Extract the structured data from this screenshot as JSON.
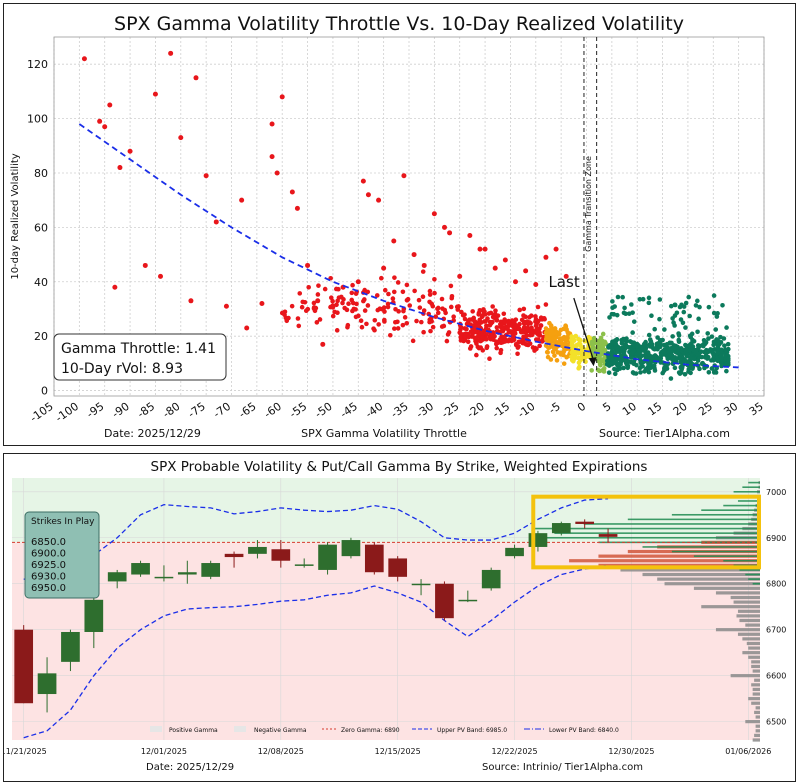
{
  "colors": {
    "accent_blue": "#1a2ee8",
    "scatter_red": "#e8161b",
    "scatter_orange": "#f5a00f",
    "scatter_yellow": "#f3e12a",
    "scatter_lightgreen": "#8cc04a",
    "scatter_teal": "#0c7a5c",
    "candle_up": "#2e6e2e",
    "candle_down": "#8b1a1a",
    "pos_gamma_bg": "#e6f5e6",
    "neg_gamma_bg": "#fde3e3",
    "highlight_box": "#f4c20d",
    "zero_gamma_line": "#d63b2f",
    "legend_panel": "#8fbfb3"
  },
  "chart_data": [
    {
      "type": "scatter",
      "title": "SPX Gamma Volatility Throttle Vs. 10-Day Realized Volatility",
      "xlabel": "SPX Gamma Volatility Throttle",
      "ylabel": "10-day Realized Volatility",
      "xlim": [
        -105,
        35
      ],
      "ylim": [
        -2,
        130
      ],
      "x_ticks": [
        -105,
        -100,
        -95,
        -90,
        -85,
        -80,
        -75,
        -70,
        -65,
        -60,
        -55,
        -50,
        -45,
        -40,
        -35,
        -30,
        -25,
        -20,
        -15,
        -10,
        -5,
        0,
        5,
        10,
        15,
        20,
        25,
        30,
        35
      ],
      "y_ticks": [
        0,
        20,
        40,
        60,
        80,
        100,
        120
      ],
      "grid": true,
      "transition_zone": {
        "label": "Gamma Transition Zone",
        "x_start": -0.5,
        "x_end": 2
      },
      "fit_curve": {
        "name": "Fit",
        "x": [
          -100,
          -90,
          -80,
          -70,
          -60,
          -50,
          -40,
          -30,
          -20,
          -10,
          0,
          10,
          20,
          30
        ],
        "y": [
          98,
          85,
          72,
          60,
          49,
          40,
          33,
          27,
          22,
          18,
          14.5,
          11.5,
          9.5,
          8.5
        ]
      },
      "outlier_points": {
        "x": [
          -99,
          -96,
          -95,
          -94,
          -93,
          -92,
          -90,
          -87,
          -85,
          -84,
          -82,
          -80,
          -78,
          -77,
          -75,
          -73,
          -71,
          -68,
          -67,
          -64,
          -62,
          -62,
          -61,
          -60,
          -58,
          -57,
          -55,
          -53,
          -52,
          -50,
          -48,
          -45,
          -44,
          -43,
          -41,
          -40,
          -38,
          -36,
          -34,
          -32,
          -30,
          -28,
          -27,
          -25,
          -23,
          -21,
          -20,
          -18,
          -16,
          -14,
          -12,
          -10,
          -8,
          -6,
          -4
        ],
        "y": [
          122,
          99,
          97,
          105,
          38,
          82,
          88,
          46,
          109,
          42,
          124,
          93,
          33,
          115,
          79,
          62,
          31,
          70,
          23,
          32,
          98,
          86,
          80,
          108,
          73,
          67,
          46,
          33,
          17,
          31,
          38,
          40,
          77,
          72,
          70,
          45,
          55,
          79,
          50,
          46,
          65,
          60,
          58,
          42,
          57,
          52,
          52,
          45,
          48,
          40,
          44,
          39,
          49,
          52,
          42
        ],
        "series_group": "red"
      },
      "dense_cloud": {
        "note": "Dense cluster of daily observations from throttle -60 to +30; colour ramps red -> orange -> yellow -> green -> teal with increasing throttle.",
        "regions": [
          {
            "x_range": [
              -60,
              -25
            ],
            "y_center": 30,
            "y_spread": 10,
            "count": 160,
            "color_key": "scatter_red"
          },
          {
            "x_range": [
              -25,
              -8
            ],
            "y_center": 22,
            "y_spread": 7,
            "count": 320,
            "color_key": "scatter_red"
          },
          {
            "x_range": [
              -8,
              -3
            ],
            "y_center": 18,
            "y_spread": 6,
            "count": 120,
            "color_key": "scatter_orange"
          },
          {
            "x_range": [
              -3,
              1
            ],
            "y_center": 15,
            "y_spread": 5,
            "count": 90,
            "color_key": "scatter_yellow"
          },
          {
            "x_range": [
              1,
              4
            ],
            "y_center": 14,
            "y_spread": 6,
            "count": 80,
            "color_key": "scatter_lightgreen"
          },
          {
            "x_range": [
              4,
              28
            ],
            "y_center": 13,
            "y_spread": 6,
            "count": 520,
            "color_key": "scatter_teal"
          }
        ]
      },
      "last_point": {
        "label": "Last",
        "x": 1.41,
        "y": 8.93
      },
      "info_box": {
        "gamma_throttle_text": "Gamma Throttle: 1.41",
        "rvol_text": "10-Day rVol: 8.93"
      },
      "date_text": "Date: 2025/12/29",
      "source_text": "Source: Tier1Alpha.com"
    },
    {
      "type": "candlestick",
      "title": "SPX Probable Volatility & Put/Call Gamma By Strike, Weighted Expirations",
      "ylim": [
        6460,
        7030
      ],
      "y_ticks": [
        6500,
        6600,
        6700,
        6800,
        6900,
        7000
      ],
      "x_tick_labels": [
        "11/21/2025",
        "12/01/2025",
        "12/08/2025",
        "12/15/2025",
        "12/22/2025",
        "12/30/2025",
        "01/06/2026"
      ],
      "x_tick_index": [
        0,
        6,
        11,
        16,
        21,
        26,
        31
      ],
      "n_slots": 32,
      "candles": [
        {
          "i": 0,
          "o": 6700,
          "h": 6710,
          "l": 6540,
          "c": 6540
        },
        {
          "i": 1,
          "o": 6560,
          "h": 6640,
          "l": 6520,
          "c": 6605
        },
        {
          "i": 2,
          "o": 6630,
          "h": 6700,
          "l": 6610,
          "c": 6695
        },
        {
          "i": 3,
          "o": 6695,
          "h": 6775,
          "l": 6660,
          "c": 6765
        },
        {
          "i": 4,
          "o": 6805,
          "h": 6830,
          "l": 6790,
          "c": 6825
        },
        {
          "i": 5,
          "o": 6820,
          "h": 6850,
          "l": 6815,
          "c": 6845
        },
        {
          "i": 6,
          "o": 6815,
          "h": 6840,
          "l": 6805,
          "c": 6815
        },
        {
          "i": 7,
          "o": 6820,
          "h": 6850,
          "l": 6800,
          "c": 6825
        },
        {
          "i": 8,
          "o": 6815,
          "h": 6850,
          "l": 6810,
          "c": 6845
        },
        {
          "i": 9,
          "o": 6865,
          "h": 6870,
          "l": 6835,
          "c": 6858
        },
        {
          "i": 10,
          "o": 6865,
          "h": 6895,
          "l": 6855,
          "c": 6880
        },
        {
          "i": 11,
          "o": 6875,
          "h": 6895,
          "l": 6835,
          "c": 6850
        },
        {
          "i": 12,
          "o": 6840,
          "h": 6855,
          "l": 6835,
          "c": 6842
        },
        {
          "i": 13,
          "o": 6830,
          "h": 6890,
          "l": 6820,
          "c": 6885
        },
        {
          "i": 14,
          "o": 6860,
          "h": 6900,
          "l": 6855,
          "c": 6895
        },
        {
          "i": 15,
          "o": 6885,
          "h": 6890,
          "l": 6820,
          "c": 6825
        },
        {
          "i": 16,
          "o": 6855,
          "h": 6860,
          "l": 6805,
          "c": 6815
        },
        {
          "i": 17,
          "o": 6800,
          "h": 6810,
          "l": 6775,
          "c": 6800
        },
        {
          "i": 18,
          "o": 6800,
          "h": 6805,
          "l": 6720,
          "c": 6725
        },
        {
          "i": 19,
          "o": 6765,
          "h": 6785,
          "l": 6760,
          "c": 6765
        },
        {
          "i": 20,
          "o": 6790,
          "h": 6835,
          "l": 6785,
          "c": 6830
        },
        {
          "i": 21,
          "o": 6860,
          "h": 6885,
          "l": 6855,
          "c": 6878
        },
        {
          "i": 22,
          "o": 6880,
          "h": 6915,
          "l": 6870,
          "c": 6910
        },
        {
          "i": 23,
          "o": 6910,
          "h": 6935,
          "l": 6905,
          "c": 6932
        },
        {
          "i": 24,
          "o": 6935,
          "h": 6940,
          "l": 6920,
          "c": 6930
        },
        {
          "i": 25,
          "o": 6908,
          "h": 6920,
          "l": 6890,
          "c": 6902
        }
      ],
      "upper_band": {
        "name": "Upper PV Band",
        "x": [
          0,
          1,
          2,
          3,
          4,
          5,
          6,
          7,
          8,
          9,
          10,
          11,
          12,
          13,
          14,
          15,
          16,
          17,
          18,
          19,
          20,
          21,
          22,
          23,
          24,
          25
        ],
        "y": [
          6810,
          6810,
          6830,
          6862,
          6900,
          6950,
          6972,
          6968,
          6965,
          6952,
          6957,
          6965,
          6960,
          6957,
          6960,
          6970,
          6962,
          6935,
          6900,
          6895,
          6895,
          6910,
          6940,
          6965,
          6982,
          6985
        ]
      },
      "lower_band": {
        "name": "Lower PV Band",
        "x": [
          0,
          1,
          2,
          3,
          4,
          5,
          6,
          7,
          8,
          9,
          10,
          11,
          12,
          13,
          14,
          15,
          16,
          17,
          18,
          19,
          20,
          21,
          22,
          23,
          24,
          25
        ],
        "y": [
          6465,
          6480,
          6525,
          6600,
          6660,
          6700,
          6730,
          6745,
          6748,
          6750,
          6755,
          6762,
          6765,
          6775,
          6780,
          6795,
          6780,
          6760,
          6720,
          6685,
          6720,
          6760,
          6795,
          6820,
          6832,
          6840
        ]
      },
      "zero_gamma": {
        "name": "Zero Gamma",
        "value": 6890
      },
      "legend": [
        {
          "key": "positive_gamma",
          "label": "Positive Gamma"
        },
        {
          "key": "negative_gamma",
          "label": "Negative Gamma"
        },
        {
          "key": "zero_gamma",
          "label": "Zero Gamma: 6890"
        },
        {
          "key": "upper_band",
          "label": "Upper PV Band: 6985.0"
        },
        {
          "key": "lower_band",
          "label": "Lower PV Band: 6840.0"
        }
      ],
      "strikes_in_play": {
        "title": "Strikes In Play",
        "strikes": [
          "6850.0",
          "6900.0",
          "6925.0",
          "6930.0",
          "6950.0"
        ]
      },
      "gamma_by_strike": {
        "strikes": [
          6460,
          6470,
          6480,
          6490,
          6500,
          6510,
          6520,
          6530,
          6540,
          6550,
          6560,
          6570,
          6580,
          6590,
          6600,
          6610,
          6620,
          6630,
          6640,
          6650,
          6660,
          6670,
          6680,
          6690,
          6700,
          6710,
          6720,
          6730,
          6740,
          6750,
          6760,
          6770,
          6780,
          6790,
          6800,
          6810,
          6820,
          6830,
          6840,
          6850,
          6860,
          6870,
          6880,
          6890,
          6900,
          6910,
          6920,
          6930,
          6940,
          6950,
          6960,
          6970,
          6980,
          6990,
          7000,
          7010,
          7020
        ],
        "put_gamma": [
          5,
          4,
          3,
          3,
          10,
          3,
          4,
          3,
          6,
          8,
          5,
          5,
          6,
          4,
          20,
          5,
          6,
          6,
          8,
          12,
          8,
          9,
          12,
          15,
          30,
          10,
          14,
          16,
          15,
          40,
          18,
          20,
          30,
          45,
          65,
          70,
          80,
          95,
          110,
          130,
          110,
          90,
          70,
          40,
          30,
          18,
          12,
          8,
          6,
          5,
          4,
          3,
          2,
          2,
          2,
          1,
          1
        ],
        "call_gamma": [
          0,
          0,
          0,
          0,
          0,
          0,
          0,
          0,
          0,
          0,
          0,
          0,
          0,
          0,
          0,
          0,
          0,
          0,
          0,
          0,
          0,
          0,
          0,
          0,
          0,
          0,
          0,
          0,
          0,
          0,
          0,
          0,
          0,
          0,
          5,
          8,
          10,
          14,
          18,
          25,
          45,
          60,
          80,
          110,
          150,
          140,
          155,
          120,
          90,
          60,
          40,
          25,
          15,
          25,
          18,
          12,
          8
        ]
      },
      "highlight_zone": {
        "y_low": 6840,
        "y_high": 6985,
        "x_from_index": 22.3
      },
      "date_text": "Date: 2025/12/29",
      "source_text": "Source: Intrinio/ Tier1Alpha.com"
    }
  ]
}
